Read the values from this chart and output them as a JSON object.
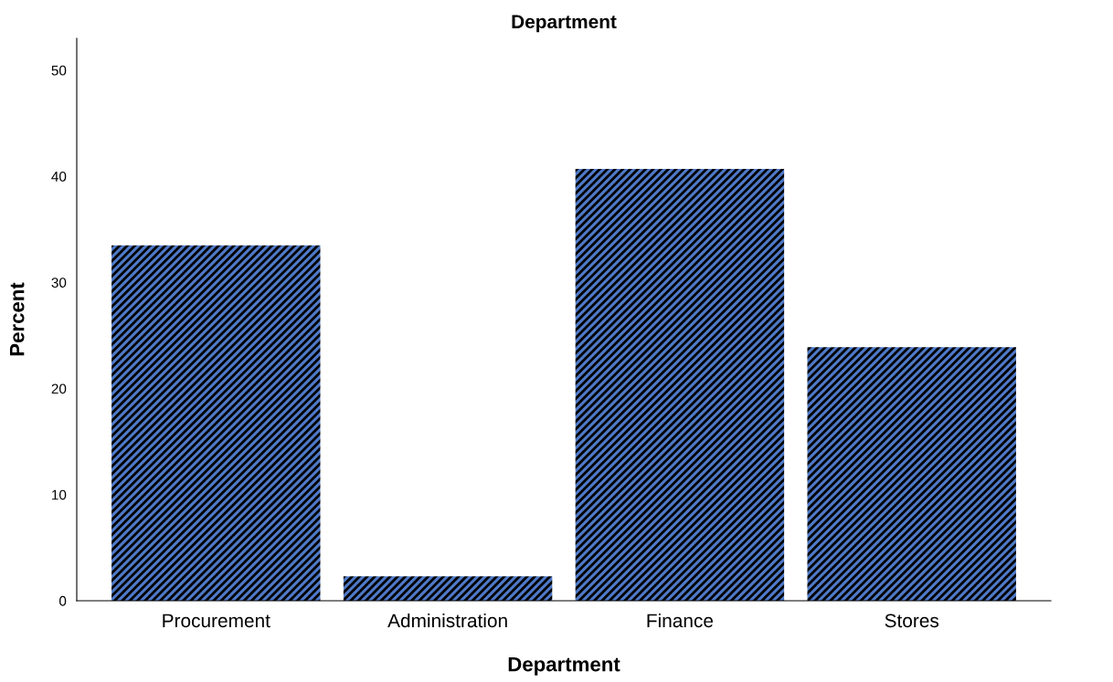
{
  "chart_data": {
    "type": "bar",
    "title": "Department",
    "xlabel": "Department",
    "ylabel": "Percent",
    "categories": [
      "Procurement",
      "Administration",
      "Finance",
      "Stores"
    ],
    "values": [
      33.5,
      2.3,
      40.7,
      23.9
    ],
    "color": "#4f79c8",
    "ylim": [
      0,
      53
    ],
    "yticks": [
      0,
      10,
      20,
      30,
      40,
      50
    ],
    "grid": false,
    "legend": false
  }
}
